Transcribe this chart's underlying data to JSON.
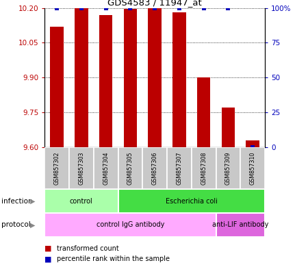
{
  "title": "GDS4583 / 11947_at",
  "samples": [
    "GSM857302",
    "GSM857303",
    "GSM857304",
    "GSM857305",
    "GSM857306",
    "GSM857307",
    "GSM857308",
    "GSM857309",
    "GSM857310"
  ],
  "red_values": [
    10.12,
    10.2,
    10.17,
    10.195,
    10.2,
    10.18,
    9.9,
    9.77,
    9.63
  ],
  "blue_values": [
    100,
    100,
    100,
    100,
    100,
    100,
    100,
    100,
    0
  ],
  "ylim_left": [
    9.6,
    10.2
  ],
  "ylim_right": [
    0,
    100
  ],
  "yticks_left": [
    9.6,
    9.75,
    9.9,
    10.05,
    10.2
  ],
  "yticks_right": [
    0,
    25,
    50,
    75,
    100
  ],
  "bar_color_red": "#bb0000",
  "bar_color_blue": "#0000bb",
  "bg_color": "#ffffff",
  "label_bg_color": "#c8c8c8",
  "infection_groups": [
    {
      "label": "control",
      "start": 0,
      "end": 3,
      "color": "#aaffaa"
    },
    {
      "label": "Escherichia coli",
      "start": 3,
      "end": 9,
      "color": "#44dd44"
    }
  ],
  "protocol_groups": [
    {
      "label": "control IgG antibody",
      "start": 0,
      "end": 7,
      "color": "#ffaaff"
    },
    {
      "label": "anti-LIF antibody",
      "start": 7,
      "end": 9,
      "color": "#dd66dd"
    }
  ],
  "legend_red": "transformed count",
  "legend_blue": "percentile rank within the sample",
  "bar_width": 0.55,
  "infection_label": "infection",
  "protocol_label": "protocol"
}
